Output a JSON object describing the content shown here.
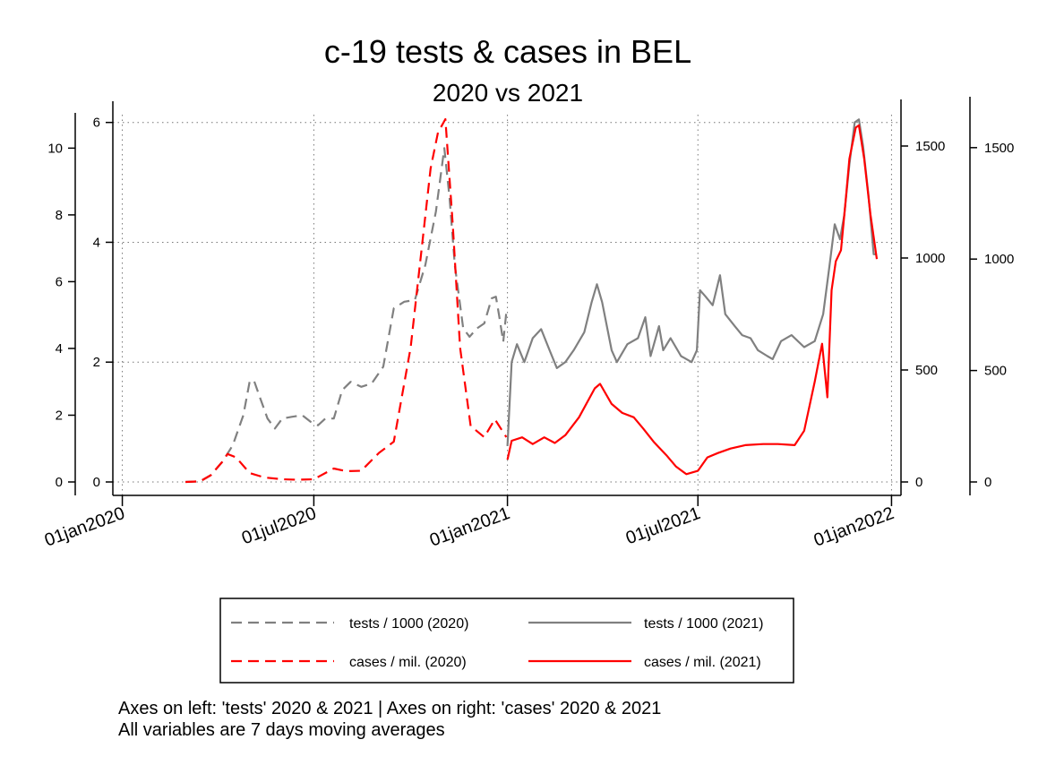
{
  "chart_data": {
    "type": "line",
    "title": "c-19 tests & cases in BEL",
    "subtitle": "2020 vs 2021",
    "x_axis": {
      "type": "date",
      "range": [
        "2019-12-23",
        "2022-01-10"
      ],
      "ticks": [
        "01jan2020",
        "01jul2020",
        "01jan2021",
        "01jul2021",
        "01jan2022"
      ],
      "tick_dates": [
        "2020-01-01",
        "2020-07-01",
        "2021-01-01",
        "2021-07-01",
        "2022-01-01"
      ],
      "grid": true
    },
    "y_axes": [
      {
        "id": "tests2020",
        "side": "left-outer",
        "range": [
          0,
          10.6
        ],
        "ticks": [
          0,
          2,
          4,
          6,
          8,
          10
        ],
        "tick_labels": [
          "0",
          "2",
          "4",
          "6",
          "8",
          "10"
        ]
      },
      {
        "id": "tests2021",
        "side": "left-inner",
        "range": [
          0,
          6.1
        ],
        "ticks": [
          0,
          2,
          4,
          6
        ],
        "tick_labels": [
          "0",
          "2",
          "4",
          "6"
        ],
        "grid": true
      },
      {
        "id": "cases2020",
        "side": "right-inner",
        "range": [
          0,
          1640
        ],
        "ticks": [
          0,
          500,
          1000,
          1500
        ],
        "tick_labels": [
          "0",
          "500",
          "1000",
          "1500"
        ]
      },
      {
        "id": "cases2021",
        "side": "right-outer",
        "range": [
          0,
          1660
        ],
        "ticks": [
          0,
          500,
          1000,
          1500
        ],
        "tick_labels": [
          "0",
          "500",
          "1000",
          "1500"
        ]
      }
    ],
    "series": [
      {
        "name": "tests / 1000 (2020)",
        "axis": "tests2020",
        "color": "#808080",
        "dash": "dashed",
        "points": [
          [
            "2020-03-01",
            0
          ],
          [
            "2020-03-15",
            0.02
          ],
          [
            "2020-03-25",
            0.2
          ],
          [
            "2020-04-05",
            0.6
          ],
          [
            "2020-04-15",
            1.1
          ],
          [
            "2020-04-25",
            2.0
          ],
          [
            "2020-05-01",
            3.0
          ],
          [
            "2020-05-05",
            3.05
          ],
          [
            "2020-05-10",
            2.6
          ],
          [
            "2020-05-18",
            1.9
          ],
          [
            "2020-05-25",
            1.6
          ],
          [
            "2020-06-01",
            1.9
          ],
          [
            "2020-06-10",
            1.95
          ],
          [
            "2020-06-20",
            2.0
          ],
          [
            "2020-06-28",
            1.8
          ],
          [
            "2020-07-05",
            1.7
          ],
          [
            "2020-07-12",
            1.9
          ],
          [
            "2020-07-20",
            1.9
          ],
          [
            "2020-07-28",
            2.75
          ],
          [
            "2020-08-05",
            3.0
          ],
          [
            "2020-08-15",
            2.85
          ],
          [
            "2020-08-25",
            2.95
          ],
          [
            "2020-09-05",
            3.45
          ],
          [
            "2020-09-15",
            5.2
          ],
          [
            "2020-09-25",
            5.4
          ],
          [
            "2020-10-05",
            5.45
          ],
          [
            "2020-10-15",
            6.5
          ],
          [
            "2020-10-25",
            8.1
          ],
          [
            "2020-11-02",
            10.0
          ],
          [
            "2020-11-07",
            8.5
          ],
          [
            "2020-11-12",
            6.5
          ],
          [
            "2020-11-20",
            4.6
          ],
          [
            "2020-11-26",
            4.35
          ],
          [
            "2020-12-03",
            4.6
          ],
          [
            "2020-12-10",
            4.75
          ],
          [
            "2020-12-17",
            5.5
          ],
          [
            "2020-12-21",
            5.55
          ],
          [
            "2020-12-24",
            5.0
          ],
          [
            "2020-12-28",
            4.2
          ],
          [
            "2020-12-31",
            5.1
          ]
        ]
      },
      {
        "name": "tests / 1000 (2021)",
        "axis": "tests2021",
        "color": "#808080",
        "dash": "solid",
        "points": [
          [
            "2021-01-01",
            0.6
          ],
          [
            "2021-01-05",
            2.0
          ],
          [
            "2021-01-10",
            2.3
          ],
          [
            "2021-01-17",
            2.0
          ],
          [
            "2021-01-25",
            2.4
          ],
          [
            "2021-02-02",
            2.55
          ],
          [
            "2021-02-10",
            2.2
          ],
          [
            "2021-02-17",
            1.9
          ],
          [
            "2021-02-25",
            2.0
          ],
          [
            "2021-03-05",
            2.2
          ],
          [
            "2021-03-15",
            2.5
          ],
          [
            "2021-03-22",
            3.0
          ],
          [
            "2021-03-27",
            3.3
          ],
          [
            "2021-04-01",
            3.0
          ],
          [
            "2021-04-10",
            2.2
          ],
          [
            "2021-04-15",
            2.0
          ],
          [
            "2021-04-25",
            2.3
          ],
          [
            "2021-05-05",
            2.4
          ],
          [
            "2021-05-12",
            2.75
          ],
          [
            "2021-05-17",
            2.1
          ],
          [
            "2021-05-25",
            2.6
          ],
          [
            "2021-05-29",
            2.2
          ],
          [
            "2021-06-05",
            2.4
          ],
          [
            "2021-06-15",
            2.1
          ],
          [
            "2021-06-25",
            2.0
          ],
          [
            "2021-06-30",
            2.2
          ],
          [
            "2021-07-03",
            3.2
          ],
          [
            "2021-07-08",
            3.1
          ],
          [
            "2021-07-15",
            2.95
          ],
          [
            "2021-07-22",
            3.45
          ],
          [
            "2021-07-27",
            2.8
          ],
          [
            "2021-08-05",
            2.6
          ],
          [
            "2021-08-12",
            2.45
          ],
          [
            "2021-08-20",
            2.4
          ],
          [
            "2021-08-27",
            2.2
          ],
          [
            "2021-09-05",
            2.1
          ],
          [
            "2021-09-10",
            2.05
          ],
          [
            "2021-09-18",
            2.35
          ],
          [
            "2021-09-28",
            2.45
          ],
          [
            "2021-10-10",
            2.25
          ],
          [
            "2021-10-20",
            2.35
          ],
          [
            "2021-10-28",
            2.8
          ],
          [
            "2021-11-03",
            3.6
          ],
          [
            "2021-11-08",
            4.3
          ],
          [
            "2021-11-13",
            4.05
          ],
          [
            "2021-11-17",
            4.45
          ],
          [
            "2021-11-22",
            5.3
          ],
          [
            "2021-11-27",
            6.0
          ],
          [
            "2021-12-01",
            6.05
          ],
          [
            "2021-12-05",
            5.6
          ],
          [
            "2021-12-10",
            4.8
          ],
          [
            "2021-12-15",
            3.8
          ],
          [
            "2021-12-18",
            3.8
          ]
        ]
      },
      {
        "name": "cases / mil. (2020)",
        "axis": "cases2020",
        "color": "#ff0000",
        "dash": "dashed",
        "points": [
          [
            "2020-03-01",
            0
          ],
          [
            "2020-03-15",
            3
          ],
          [
            "2020-03-25",
            30
          ],
          [
            "2020-04-05",
            90
          ],
          [
            "2020-04-10",
            125
          ],
          [
            "2020-04-18",
            110
          ],
          [
            "2020-05-01",
            40
          ],
          [
            "2020-05-15",
            20
          ],
          [
            "2020-06-01",
            12
          ],
          [
            "2020-06-15",
            10
          ],
          [
            "2020-07-01",
            12
          ],
          [
            "2020-07-20",
            60
          ],
          [
            "2020-08-01",
            48
          ],
          [
            "2020-08-15",
            50
          ],
          [
            "2020-09-01",
            130
          ],
          [
            "2020-09-15",
            180
          ],
          [
            "2020-10-01",
            600
          ],
          [
            "2020-10-20",
            1400
          ],
          [
            "2020-10-27",
            1560
          ],
          [
            "2020-11-03",
            1620
          ],
          [
            "2020-11-10",
            1150
          ],
          [
            "2020-11-17",
            600
          ],
          [
            "2020-11-27",
            250
          ],
          [
            "2020-12-10",
            200
          ],
          [
            "2020-12-20",
            280
          ],
          [
            "2020-12-31",
            200
          ]
        ]
      },
      {
        "name": "cases / mil. (2021)",
        "axis": "cases2021",
        "color": "#ff0000",
        "dash": "solid",
        "points": [
          [
            "2021-01-01",
            100
          ],
          [
            "2021-01-05",
            185
          ],
          [
            "2021-01-15",
            200
          ],
          [
            "2021-01-25",
            170
          ],
          [
            "2021-02-05",
            200
          ],
          [
            "2021-02-15",
            175
          ],
          [
            "2021-02-25",
            210
          ],
          [
            "2021-03-10",
            290
          ],
          [
            "2021-03-25",
            420
          ],
          [
            "2021-03-30",
            440
          ],
          [
            "2021-04-10",
            350
          ],
          [
            "2021-04-20",
            310
          ],
          [
            "2021-05-01",
            290
          ],
          [
            "2021-05-10",
            240
          ],
          [
            "2021-05-20",
            180
          ],
          [
            "2021-06-01",
            120
          ],
          [
            "2021-06-10",
            70
          ],
          [
            "2021-06-20",
            35
          ],
          [
            "2021-07-01",
            50
          ],
          [
            "2021-07-10",
            110
          ],
          [
            "2021-07-20",
            130
          ],
          [
            "2021-08-01",
            150
          ],
          [
            "2021-08-15",
            165
          ],
          [
            "2021-09-01",
            170
          ],
          [
            "2021-09-15",
            170
          ],
          [
            "2021-10-01",
            165
          ],
          [
            "2021-10-10",
            230
          ],
          [
            "2021-10-20",
            450
          ],
          [
            "2021-10-27",
            620
          ],
          [
            "2021-11-01",
            380
          ],
          [
            "2021-11-05",
            860
          ],
          [
            "2021-11-09",
            990
          ],
          [
            "2021-11-14",
            1040
          ],
          [
            "2021-11-18",
            1240
          ],
          [
            "2021-11-22",
            1450
          ],
          [
            "2021-11-28",
            1590
          ],
          [
            "2021-12-01",
            1600
          ],
          [
            "2021-12-06",
            1450
          ],
          [
            "2021-12-12",
            1200
          ],
          [
            "2021-12-18",
            1000
          ]
        ]
      }
    ],
    "legend": {
      "placement": "bottom",
      "entries": [
        {
          "label": "tests / 1000 (2020)",
          "color": "#808080",
          "dash": "dashed"
        },
        {
          "label": "tests / 1000 (2021)",
          "color": "#808080",
          "dash": "solid"
        },
        {
          "label": "cases / mil. (2020)",
          "color": "#ff0000",
          "dash": "dashed"
        },
        {
          "label": "cases / mil. (2021)",
          "color": "#ff0000",
          "dash": "solid"
        }
      ]
    },
    "notes": [
      "Axes on left: 'tests' 2020 & 2021 | Axes on right: 'cases' 2020 & 2021",
      "All variables are 7 days moving averages"
    ]
  }
}
